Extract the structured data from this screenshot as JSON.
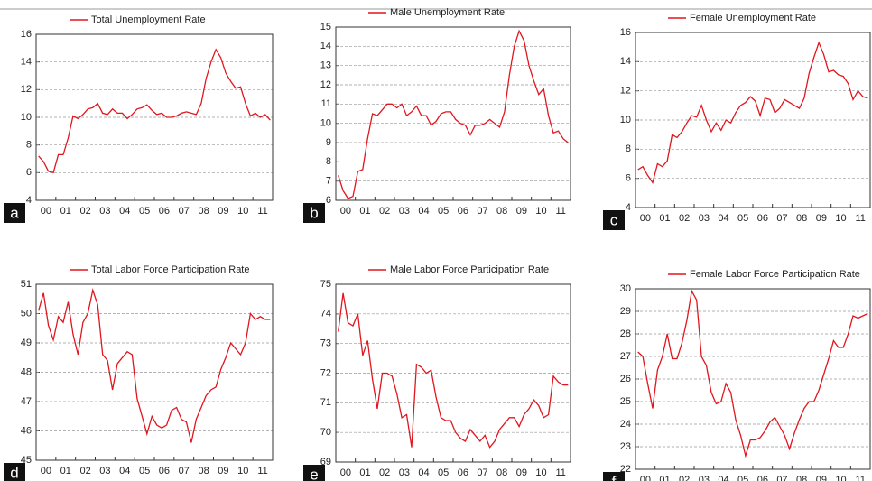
{
  "chart_data": [
    {
      "type": "line",
      "panel_label": "a",
      "grid": true,
      "categories": [
        "00",
        null,
        null,
        null,
        "01",
        null,
        null,
        null,
        "02",
        null,
        null,
        null,
        "03",
        null,
        null,
        null,
        "04",
        null,
        null,
        null,
        "05",
        null,
        null,
        null,
        "06",
        null,
        null,
        null,
        "07",
        null,
        null,
        null,
        "08",
        null,
        null,
        null,
        "09",
        null,
        null,
        null,
        "10",
        null,
        null,
        null,
        "11",
        null,
        null,
        null
      ],
      "series": [
        {
          "name": "Total Unemployment Rate",
          "color": "#e0161e",
          "values": [
            7.2,
            6.8,
            6.1,
            6.0,
            7.3,
            7.3,
            8.5,
            10.1,
            9.9,
            10.2,
            10.6,
            10.7,
            11.0,
            10.3,
            10.2,
            10.6,
            10.3,
            10.3,
            9.9,
            10.2,
            10.6,
            10.7,
            10.9,
            10.5,
            10.2,
            10.3,
            10.0,
            10.0,
            10.1,
            10.3,
            10.4,
            10.3,
            10.2,
            11.0,
            12.8,
            14.0,
            14.9,
            14.3,
            13.2,
            12.6,
            12.1,
            12.2,
            11.0,
            10.1,
            10.3,
            10.0,
            10.2,
            9.8
          ]
        }
      ],
      "ylim": [
        4,
        16
      ],
      "yticks": [
        4,
        6,
        8,
        10,
        12,
        14,
        16
      ]
    },
    {
      "type": "line",
      "panel_label": "b",
      "grid": true,
      "categories": [
        "00",
        null,
        null,
        null,
        "01",
        null,
        null,
        null,
        "02",
        null,
        null,
        null,
        "03",
        null,
        null,
        null,
        "04",
        null,
        null,
        null,
        "05",
        null,
        null,
        null,
        "06",
        null,
        null,
        null,
        "07",
        null,
        null,
        null,
        "08",
        null,
        null,
        null,
        "09",
        null,
        null,
        null,
        "10",
        null,
        null,
        null,
        "11",
        null,
        null,
        null
      ],
      "series": [
        {
          "name": "Male Unemployment Rate",
          "color": "#e0161e",
          "values": [
            7.3,
            6.5,
            6.1,
            6.2,
            7.5,
            7.6,
            9.2,
            10.5,
            10.4,
            10.7,
            11.0,
            11.0,
            10.8,
            11.0,
            10.4,
            10.6,
            10.9,
            10.4,
            10.4,
            9.9,
            10.1,
            10.5,
            10.6,
            10.6,
            10.2,
            10.0,
            9.9,
            9.4,
            9.9,
            9.9,
            10.0,
            10.2,
            10.0,
            9.8,
            10.6,
            12.5,
            14.0,
            14.8,
            14.3,
            13.0,
            12.2,
            11.5,
            11.8,
            10.4,
            9.5,
            9.6,
            9.2,
            9.0
          ]
        }
      ],
      "ylim": [
        6,
        15
      ],
      "yticks": [
        6,
        7,
        8,
        9,
        10,
        11,
        12,
        13,
        14,
        15
      ]
    },
    {
      "type": "line",
      "panel_label": "c",
      "grid": true,
      "categories": [
        "00",
        null,
        null,
        null,
        "01",
        null,
        null,
        null,
        "02",
        null,
        null,
        null,
        "03",
        null,
        null,
        null,
        "04",
        null,
        null,
        null,
        "05",
        null,
        null,
        null,
        "06",
        null,
        null,
        null,
        "07",
        null,
        null,
        null,
        "08",
        null,
        null,
        null,
        "09",
        null,
        null,
        null,
        "10",
        null,
        null,
        null,
        "11",
        null,
        null,
        null
      ],
      "series": [
        {
          "name": "Female Unemployment Rate",
          "color": "#e0161e",
          "values": [
            6.6,
            6.8,
            6.2,
            5.7,
            7.0,
            6.8,
            7.2,
            9.0,
            8.8,
            9.2,
            9.8,
            10.3,
            10.2,
            11.0,
            10.0,
            9.2,
            9.8,
            9.3,
            10.0,
            9.8,
            10.5,
            11.0,
            11.2,
            11.6,
            11.3,
            10.3,
            11.5,
            11.4,
            10.5,
            10.8,
            11.4,
            11.2,
            11.0,
            10.8,
            11.5,
            13.2,
            14.3,
            15.3,
            14.5,
            13.3,
            13.4,
            13.1,
            13.0,
            12.5,
            11.4,
            12.0,
            11.6,
            11.5
          ]
        }
      ],
      "ylim": [
        4,
        16
      ],
      "yticks": [
        4,
        6,
        8,
        10,
        12,
        14,
        16
      ]
    },
    {
      "type": "line",
      "panel_label": "d",
      "grid": true,
      "categories": [
        "00",
        null,
        null,
        null,
        "01",
        null,
        null,
        null,
        "02",
        null,
        null,
        null,
        "03",
        null,
        null,
        null,
        "04",
        null,
        null,
        null,
        "05",
        null,
        null,
        null,
        "06",
        null,
        null,
        null,
        "07",
        null,
        null,
        null,
        "08",
        null,
        null,
        null,
        "09",
        null,
        null,
        null,
        "10",
        null,
        null,
        null,
        "11",
        null,
        null,
        null
      ],
      "series": [
        {
          "name": "Total Labor Force Participation Rate",
          "color": "#e0161e",
          "values": [
            50.1,
            50.7,
            49.6,
            49.1,
            49.9,
            49.7,
            50.4,
            49.3,
            48.6,
            49.7,
            50.0,
            50.8,
            50.3,
            48.6,
            48.4,
            47.4,
            48.3,
            48.5,
            48.7,
            48.6,
            47.1,
            46.5,
            45.9,
            46.5,
            46.2,
            46.1,
            46.2,
            46.7,
            46.8,
            46.4,
            46.3,
            45.6,
            46.4,
            46.8,
            47.2,
            47.4,
            47.5,
            48.1,
            48.5,
            49.0,
            48.8,
            48.6,
            49.0,
            50.0,
            49.8,
            49.9,
            49.8,
            49.8
          ]
        }
      ],
      "ylim": [
        45,
        51
      ],
      "yticks": [
        45,
        46,
        47,
        48,
        49,
        50,
        51
      ]
    },
    {
      "type": "line",
      "panel_label": "e",
      "grid": true,
      "categories": [
        "00",
        null,
        null,
        null,
        "01",
        null,
        null,
        null,
        "02",
        null,
        null,
        null,
        "03",
        null,
        null,
        null,
        "04",
        null,
        null,
        null,
        "05",
        null,
        null,
        null,
        "06",
        null,
        null,
        null,
        "07",
        null,
        null,
        null,
        "08",
        null,
        null,
        null,
        "09",
        null,
        null,
        null,
        "10",
        null,
        null,
        null,
        "11",
        null,
        null,
        null
      ],
      "series": [
        {
          "name": "Male Labor Force Participation Rate",
          "color": "#e0161e",
          "values": [
            73.4,
            74.7,
            73.7,
            73.6,
            74.0,
            72.6,
            73.1,
            71.8,
            70.8,
            72.0,
            72.0,
            71.9,
            71.3,
            70.5,
            70.6,
            69.5,
            72.3,
            72.2,
            72.0,
            72.1,
            71.2,
            70.5,
            70.4,
            70.4,
            70.0,
            69.8,
            69.7,
            70.1,
            69.9,
            69.7,
            69.9,
            69.5,
            69.7,
            70.1,
            70.3,
            70.5,
            70.5,
            70.2,
            70.6,
            70.8,
            71.1,
            70.9,
            70.5,
            70.6,
            71.9,
            71.7,
            71.6,
            71.6
          ]
        }
      ],
      "ylim": [
        69,
        75
      ],
      "yticks": [
        69,
        70,
        71,
        72,
        73,
        74,
        75
      ]
    },
    {
      "type": "line",
      "panel_label": "f",
      "grid": true,
      "categories": [
        "00",
        null,
        null,
        null,
        "01",
        null,
        null,
        null,
        "02",
        null,
        null,
        null,
        "03",
        null,
        null,
        null,
        "04",
        null,
        null,
        null,
        "05",
        null,
        null,
        null,
        "06",
        null,
        null,
        null,
        "07",
        null,
        null,
        null,
        "08",
        null,
        null,
        null,
        "09",
        null,
        null,
        null,
        "10",
        null,
        null,
        null,
        "11",
        null,
        null,
        null
      ],
      "series": [
        {
          "name": "Female Labor Force Participation Rate",
          "color": "#e0161e",
          "values": [
            27.2,
            27.0,
            25.8,
            24.7,
            26.4,
            27.0,
            28.0,
            26.9,
            26.9,
            27.6,
            28.6,
            29.9,
            29.5,
            27.0,
            26.6,
            25.4,
            24.9,
            25.0,
            25.8,
            25.4,
            24.2,
            23.5,
            22.6,
            23.3,
            23.3,
            23.4,
            23.7,
            24.1,
            24.3,
            23.9,
            23.5,
            22.9,
            23.6,
            24.2,
            24.7,
            25.0,
            25.0,
            25.5,
            26.2,
            26.9,
            27.7,
            27.4,
            27.4,
            28.0,
            28.8,
            28.7,
            28.8,
            28.9
          ]
        }
      ],
      "ylim": [
        22,
        30
      ],
      "yticks": [
        22,
        23,
        24,
        25,
        26,
        27,
        28,
        29,
        30
      ]
    }
  ]
}
